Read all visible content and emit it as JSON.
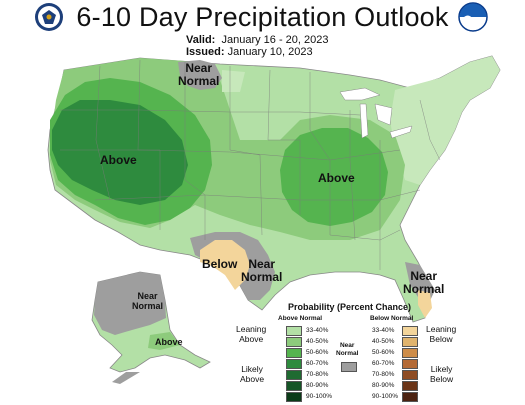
{
  "header": {
    "title": "6-10 Day Precipitation Outlook",
    "valid_label": "Valid:",
    "valid_value": "January 16 - 20, 2023",
    "issued_label": "Issued:",
    "issued_value": "January 10, 2023",
    "left_logo_icon": "doc-seal-icon",
    "right_logo_icon": "noaa-logo-icon"
  },
  "map_labels": {
    "above_west": "Above",
    "above_midwest": "Above",
    "near_normal_north_1": "Near",
    "near_normal_north_2": "Normal",
    "below_texas": "Below",
    "near_normal_texas_1": "Near",
    "near_normal_texas_2": "Normal",
    "near_normal_southeast_1": "Near",
    "near_normal_southeast_2": "Normal",
    "near_normal_alaska_1": "Near",
    "near_normal_alaska_2": "Normal",
    "above_alaska": "Above"
  },
  "legend": {
    "title": "Probability (Percent Chance)",
    "above_header": "Above Normal",
    "below_header": "Below Normal",
    "near_header_1": "Near",
    "near_header_2": "Normal",
    "leaning_above_1": "Leaning",
    "leaning_above_2": "Above",
    "likely_above_1": "Likely",
    "likely_above_2": "Above",
    "leaning_below_1": "Leaning",
    "leaning_below_2": "Below",
    "likely_below_1": "Likely",
    "likely_below_2": "Below",
    "above_ranges": [
      "33-40%",
      "40-50%",
      "50-60%",
      "60-70%",
      "70-80%",
      "80-90%",
      "90-100%"
    ],
    "below_ranges": [
      "33-40%",
      "40-50%",
      "50-60%",
      "60-70%",
      "70-80%",
      "80-90%",
      "90-100%"
    ],
    "above_colors": [
      "#b3e0a6",
      "#8dcb7c",
      "#55b44f",
      "#2e8b3e",
      "#1f6b31",
      "#155526",
      "#0b3b18"
    ],
    "below_colors": [
      "#f3d59b",
      "#e0b46e",
      "#cd8d4a",
      "#b46a35",
      "#8e4c23",
      "#6a3418",
      "#4b2210"
    ],
    "near_color": "#9e9e9e"
  }
}
